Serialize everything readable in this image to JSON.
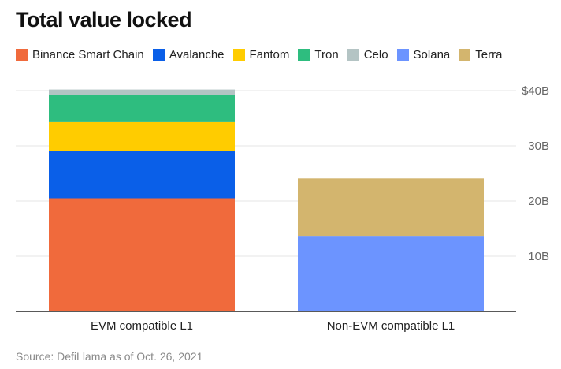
{
  "chart_data": {
    "type": "bar",
    "stacked": true,
    "title": "Total value locked",
    "source": "Source: DefiLlama as of Oct. 26, 2021",
    "categories": [
      "EVM compatible L1",
      "Non-EVM compatible L1"
    ],
    "series": [
      {
        "name": "Binance Smart Chain",
        "color": "#f06a3c",
        "values": [
          20.5,
          0
        ]
      },
      {
        "name": "Avalanche",
        "color": "#0a5fe8",
        "values": [
          8.6,
          0
        ]
      },
      {
        "name": "Fantom",
        "color": "#ffcc00",
        "values": [
          5.2,
          0
        ]
      },
      {
        "name": "Tron",
        "color": "#2ebd7f",
        "values": [
          4.9,
          0
        ]
      },
      {
        "name": "Celo",
        "color": "#b4c4c4",
        "values": [
          1.0,
          0
        ]
      },
      {
        "name": "Solana",
        "color": "#6c94ff",
        "values": [
          0,
          13.7
        ]
      },
      {
        "name": "Terra",
        "color": "#d3b56e",
        "values": [
          0,
          10.4
        ]
      }
    ],
    "ylim": [
      0,
      40
    ],
    "yticks": [
      {
        "value": 10,
        "label": "10B"
      },
      {
        "value": 20,
        "label": "20B"
      },
      {
        "value": 30,
        "label": "30B"
      },
      {
        "value": 40,
        "label": "$40B"
      }
    ],
    "xlabel": "",
    "ylabel": "",
    "grid": true,
    "legend_position": "top"
  }
}
